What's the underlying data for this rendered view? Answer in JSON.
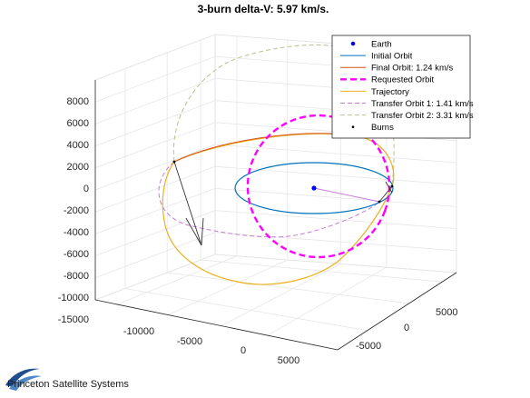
{
  "chart_data": {
    "type": "line",
    "title": "3-burn delta-V: 5.97 km/s.",
    "view": "3-D orbit plot",
    "grid": true,
    "legend_placement": "top-right",
    "axes": {
      "x_ticks": [
        "-10000",
        "-5000",
        "0",
        "5000"
      ],
      "y_ticks": [
        "-5000",
        "0",
        "5000"
      ],
      "z_ticks": [
        "-15000",
        "-10000",
        "-8000",
        "-6000",
        "-4000",
        "-2000",
        "0",
        "2000",
        "4000",
        "6000",
        "8000"
      ]
    },
    "series": [
      {
        "name": "Earth",
        "color": "#0000ff",
        "style": "marker-dot"
      },
      {
        "name": "Initial Orbit",
        "color": "#0072bd",
        "style": "solid"
      },
      {
        "name": "Final Orbit: 1.24 km/s",
        "color": "#d95319",
        "style": "solid"
      },
      {
        "name": "Requested Orbit",
        "color": "#ff00ff",
        "style": "thick-dashed"
      },
      {
        "name": "Trajectory",
        "color": "#edb120",
        "style": "solid"
      },
      {
        "name": "Transfer Orbit 1: 1.41 km/s",
        "color": "#c77dd6",
        "style": "dashed"
      },
      {
        "name": "Transfer Orbit 2: 3.31 km/s",
        "color": "#b7c48f",
        "style": "dashed"
      },
      {
        "name": "Burns",
        "color": "#000000",
        "style": "marker-dot"
      }
    ]
  },
  "brand": {
    "name": "Princeton Satellite Systems",
    "logo_icon": "psys-swoosh-logo"
  }
}
